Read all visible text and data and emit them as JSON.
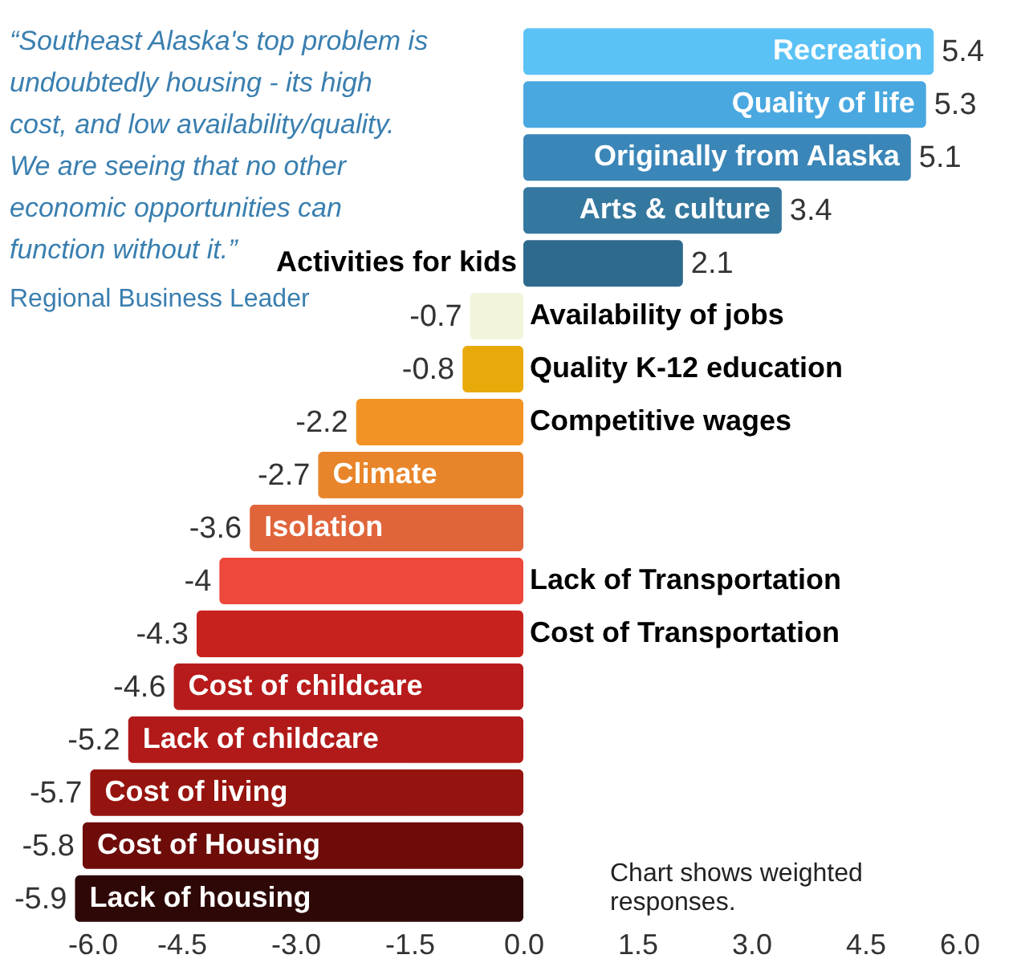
{
  "chart_data": {
    "type": "bar",
    "orientation": "horizontal",
    "data_labels": true,
    "grid": false,
    "categories": [
      "Recreation",
      "Quality of life",
      "Originally from Alaska",
      "Arts & culture",
      "Activities for kids",
      "Availability of jobs",
      "Quality K-12 education",
      "Competitive wages",
      "Climate",
      "Isolation",
      "Lack of Transportation",
      "Cost of Transportation",
      "Cost of childcare",
      "Lack of childcare",
      "Cost of living",
      "Cost of Housing",
      "Lack of housing"
    ],
    "values": [
      5.4,
      5.3,
      5.1,
      3.4,
      2.1,
      -0.7,
      -0.8,
      -2.2,
      -2.7,
      -3.6,
      -4,
      -4.3,
      -4.6,
      -5.2,
      -5.7,
      -5.8,
      -5.9
    ],
    "colors": [
      "#5bc2f5",
      "#4aa8e0",
      "#3b86b8",
      "#35789f",
      "#2e6a8e",
      "#f2f5dc",
      "#e8a90a",
      "#f39323",
      "#e8852a",
      "#e0653a",
      "#ee473c",
      "#c8221e",
      "#b81b1b",
      "#b21a1a",
      "#96140f",
      "#6e0c0a",
      "#2e0807"
    ],
    "xlim": [
      -6,
      6
    ],
    "xticks": [
      {
        "value": -6,
        "label": "-6.0"
      },
      {
        "value": -4.5,
        "label": "-4.5"
      },
      {
        "value": -3,
        "label": "-3.0"
      },
      {
        "value": -1.5,
        "label": "-1.5"
      },
      {
        "value": 0,
        "label": "0.0"
      },
      {
        "value": 1.5,
        "label": "1.5"
      },
      {
        "value": 3,
        "label": "3.0"
      },
      {
        "value": 4.5,
        "label": "4.5"
      },
      {
        "value": 6,
        "label": "6.0"
      }
    ],
    "annotations": [
      "“Southeast Alaska's top problem is\nundoubtedly housing - its high\ncost, and low availability/quality.\nWe are seeing that no other\neconomic opportunities can\nfunction without it.”",
      "Regional Business Leader",
      "Chart shows weighted\nresponses."
    ]
  }
}
